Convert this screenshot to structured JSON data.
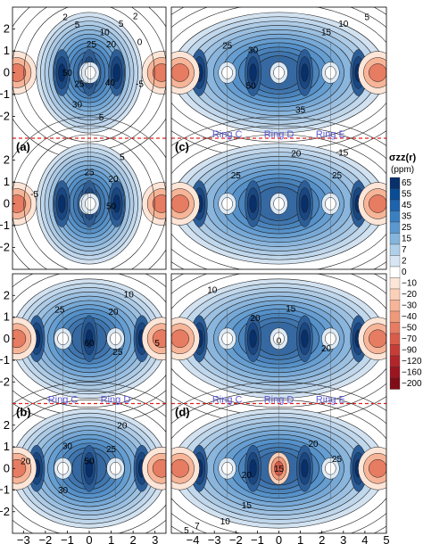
{
  "chart_data": {
    "type": "heatmap",
    "colorbar": {
      "title": "σzz(r)",
      "unit": "(ppm)",
      "levels": [
        65,
        55,
        45,
        35,
        25,
        15,
        7,
        2,
        0,
        -10,
        -20,
        -30,
        -40,
        -50,
        -70,
        -90,
        -120,
        -160,
        -200
      ],
      "colors": [
        "#08306b",
        "#0b4d94",
        "#1d63ad",
        "#3a7fc0",
        "#5b98cf",
        "#85b5dd",
        "#b0cfe8",
        "#d8e6f3",
        "#ffffff",
        "#fde5d7",
        "#fbd0b8",
        "#f6b598",
        "#ef997b",
        "#e67c62",
        "#d95c4b",
        "#c63d38",
        "#b1262b",
        "#9b1520",
        "#800c17"
      ]
    },
    "panels": [
      {
        "label": "(a)",
        "xlim": [
          -3.5,
          3.5
        ],
        "xticks": [
          -3,
          -2,
          -1,
          0,
          1,
          2,
          3
        ],
        "yticks_top": [
          2,
          1,
          0,
          -1,
          -2
        ],
        "yticks_bottom": [
          2,
          1,
          0,
          -1,
          -2
        ],
        "rings": [],
        "contour_labels": [
          {
            "text": "2",
            "x": -1.1,
            "y": 2.55
          },
          {
            "text": "5",
            "x": -0.55,
            "y": 2.2
          },
          {
            "text": "5",
            "x": 1.45,
            "y": 2.25
          },
          {
            "text": "2",
            "x": 2.1,
            "y": 2.6
          },
          {
            "text": "10",
            "x": 0.7,
            "y": 1.85
          },
          {
            "text": "25",
            "x": 0.1,
            "y": 1.3
          },
          {
            "text": "20",
            "x": 1.0,
            "y": 1.3
          },
          {
            "text": "0",
            "x": 2.3,
            "y": 1.4
          },
          {
            "text": "50",
            "x": -1.0,
            "y": 0.0
          },
          {
            "text": "25",
            "x": -0.45,
            "y": -0.5
          },
          {
            "text": "40",
            "x": 0.95,
            "y": -0.45
          },
          {
            "text": "30",
            "x": -0.55,
            "y": -1.45
          },
          {
            "text": "-5",
            "x": 2.3,
            "y": -0.5
          },
          {
            "text": "5",
            "x": 0.55,
            "y": -2.05
          }
        ]
      },
      {
        "label": "(c)",
        "xlim": [
          -5,
          5
        ],
        "xticks": [
          -4,
          -3,
          -2,
          -1,
          0,
          1,
          2,
          3,
          4,
          5
        ],
        "rings": [
          "Ring C",
          "Ring D",
          "Ring E"
        ],
        "contour_labels": [
          {
            "text": "5",
            "x": 4.1,
            "y": 2.55
          },
          {
            "text": "10",
            "x": 3.0,
            "y": 2.25
          },
          {
            "text": "15",
            "x": 2.2,
            "y": 1.85
          },
          {
            "text": "25",
            "x": -2.4,
            "y": 1.25
          },
          {
            "text": "30",
            "x": -1.2,
            "y": 1.05
          },
          {
            "text": "50",
            "x": -1.3,
            "y": -0.6
          },
          {
            "text": "35",
            "x": 1.0,
            "y": -1.7
          }
        ]
      },
      {
        "label": "(b)",
        "xlim": [
          -3.5,
          3.5
        ],
        "xticks": [
          -3,
          -2,
          -1,
          0,
          1,
          2,
          3
        ],
        "rings": [
          "Ring C",
          "Ring D"
        ],
        "contour_labels": [
          {
            "text": "10",
            "x": 1.8,
            "y": 2.05
          },
          {
            "text": "25",
            "x": -1.35,
            "y": 1.35
          },
          {
            "text": "20",
            "x": 1.1,
            "y": 1.25
          },
          {
            "text": "60",
            "x": 0.0,
            "y": -0.2
          },
          {
            "text": "25",
            "x": 1.3,
            "y": -0.6
          },
          {
            "text": "5",
            "x": 3.1,
            "y": -0.2
          }
        ]
      },
      {
        "label": "(d)",
        "xlim": [
          -5,
          5
        ],
        "xticks": [
          -4,
          -3,
          -2,
          -1,
          0,
          1,
          2,
          3,
          4,
          5
        ],
        "rings": [
          "Ring C",
          "Ring D",
          "Ring E"
        ],
        "contour_labels": [
          {
            "text": "10",
            "x": -3.1,
            "y": 2.25
          },
          {
            "text": "15",
            "x": 0.55,
            "y": 1.4
          },
          {
            "text": "20",
            "x": -1.1,
            "y": 0.95
          },
          {
            "text": "0",
            "x": 0.0,
            "y": -0.1
          },
          {
            "text": "20",
            "x": 2.2,
            "y": -0.45
          }
        ]
      },
      {
        "label": "",
        "subpanel_of": "(a)",
        "contour_labels": [
          {
            "text": "25",
            "x": 0.0,
            "y": 1.45
          },
          {
            "text": "20",
            "x": 1.1,
            "y": 1.15
          },
          {
            "text": "5",
            "x": 1.5,
            "y": 2.15
          },
          {
            "text": "-5",
            "x": -2.5,
            "y": 0.45
          },
          {
            "text": "50",
            "x": 1.0,
            "y": -0.1
          }
        ]
      },
      {
        "label": "",
        "subpanel_of": "(c)",
        "contour_labels": [
          {
            "text": "20",
            "x": 0.8,
            "y": 2.3
          },
          {
            "text": "15",
            "x": 3.0,
            "y": 2.35
          },
          {
            "text": "25",
            "x": -2.0,
            "y": 1.3
          },
          {
            "text": "25",
            "x": 2.7,
            "y": 1.3
          }
        ]
      },
      {
        "label": "",
        "subpanel_of": "(b)",
        "contour_labels": [
          {
            "text": "20",
            "x": 1.5,
            "y": 2.0
          },
          {
            "text": "30",
            "x": -1.0,
            "y": 1.05
          },
          {
            "text": "25",
            "x": 1.0,
            "y": 0.9
          },
          {
            "text": "50",
            "x": 0.0,
            "y": 0.35
          },
          {
            "text": "20",
            "x": -2.9,
            "y": 0.35
          },
          {
            "text": "30",
            "x": -1.2,
            "y": -1.0
          }
        ]
      },
      {
        "label": "",
        "subpanel_of": "(d)",
        "contour_labels": [
          {
            "text": "20",
            "x": 1.6,
            "y": 1.15
          },
          {
            "text": "25",
            "x": 2.7,
            "y": 0.45
          },
          {
            "text": "15",
            "x": 0.0,
            "y": 0.0
          },
          {
            "text": "20",
            "x": -1.5,
            "y": -0.3
          },
          {
            "text": "15",
            "x": -1.5,
            "y": -1.7
          },
          {
            "text": "10",
            "x": -2.5,
            "y": -2.45
          },
          {
            "text": "7",
            "x": -3.8,
            "y": -2.65
          },
          {
            "text": "5",
            "x": -4.3,
            "y": -2.85
          }
        ]
      }
    ]
  }
}
